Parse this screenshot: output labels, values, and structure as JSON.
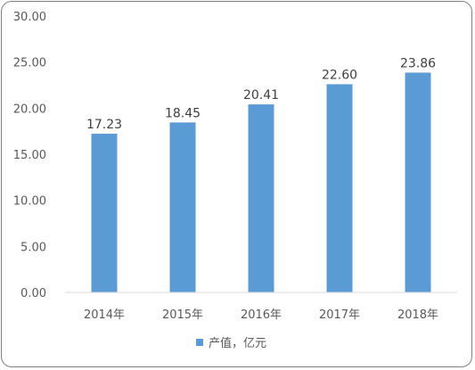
{
  "chart_data": {
    "type": "bar",
    "categories": [
      "2014年",
      "2015年",
      "2016年",
      "2017年",
      "2018年"
    ],
    "series": [
      {
        "name": "产值，亿元",
        "values": [
          17.23,
          18.45,
          20.41,
          22.6,
          23.86
        ],
        "color": "#5b9bd5"
      }
    ],
    "data_labels": [
      "17.23",
      "18.45",
      "20.41",
      "22.60",
      "23.86"
    ],
    "ylim": [
      0,
      30
    ],
    "yticks": [
      "0.00",
      "5.00",
      "10.00",
      "15.00",
      "20.00",
      "25.00",
      "30.00"
    ],
    "title": "",
    "xlabel": "",
    "ylabel": "",
    "grid": false,
    "legend": "bottom"
  }
}
